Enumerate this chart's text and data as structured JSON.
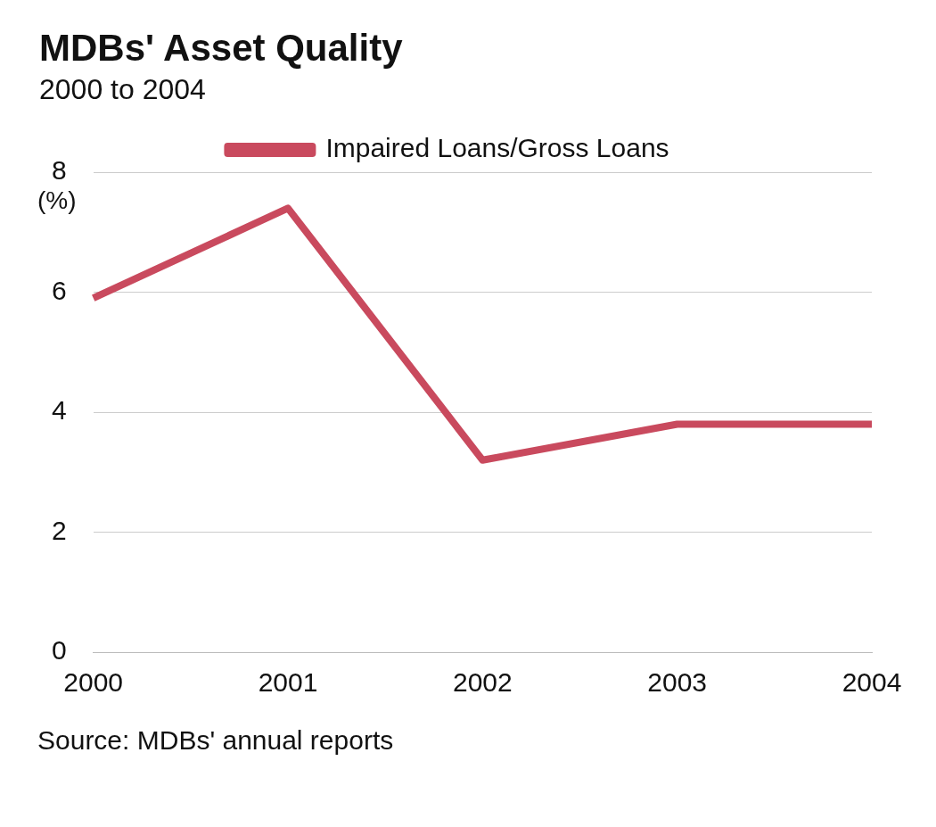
{
  "chart_data": {
    "type": "line",
    "title": "MDBs' Asset Quality",
    "subtitle": "2000 to 2004",
    "ylabel": "(%)",
    "categories": [
      "2000",
      "2001",
      "2002",
      "2003",
      "2004"
    ],
    "series": [
      {
        "name": "Impaired Loans/Gross Loans",
        "color": "#c94a5e",
        "values": [
          5.9,
          7.4,
          3.2,
          3.8,
          3.8
        ]
      }
    ],
    "ylim": [
      0,
      8
    ],
    "yticks": [
      0,
      2,
      4,
      6,
      8
    ],
    "grid": "y",
    "legend": "top",
    "marker": "none",
    "line_style": "solid",
    "annotations": [
      "Source: MDBs' annual reports"
    ]
  }
}
